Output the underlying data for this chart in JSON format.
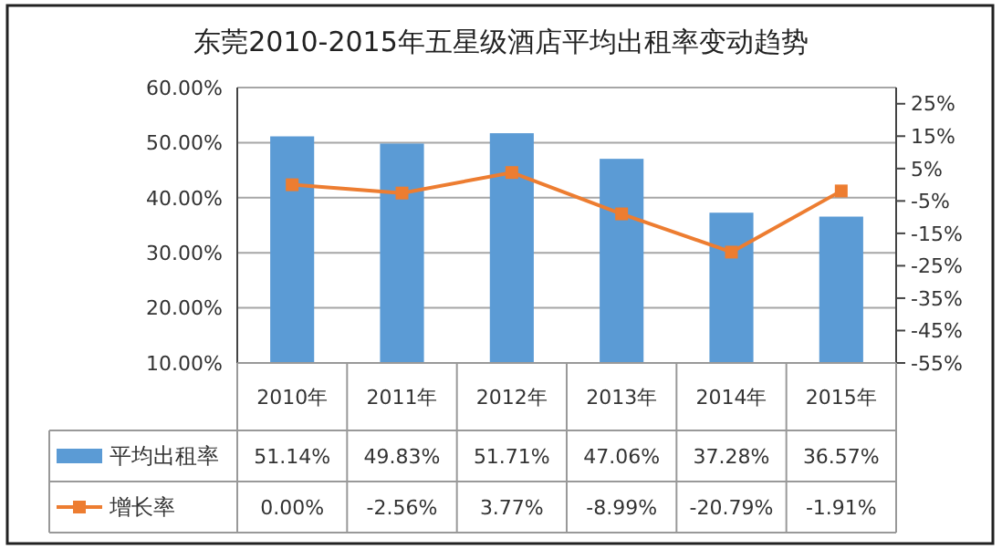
{
  "chart_data": {
    "type": "bar",
    "title": "东莞2010-2015年五星级酒店平均出租率变动趋势",
    "categories": [
      "2010年",
      "2011年",
      "2012年",
      "2013年",
      "2014年",
      "2015年"
    ],
    "series": [
      {
        "name": "平均出租率",
        "color": "#5b9bd5",
        "values": [
          51.14,
          49.83,
          51.71,
          47.06,
          37.28,
          36.57
        ],
        "value_labels": [
          "51.14%",
          "49.83%",
          "51.71%",
          "47.06%",
          "37.28%",
          "36.57%"
        ]
      },
      {
        "name": "增长率",
        "type": "line",
        "axis": "y2",
        "color": "#ed7d31",
        "marker": "square",
        "values": [
          0,
          -2.56,
          3.77,
          -8.99,
          -20.79,
          -1.91
        ],
        "value_labels": [
          "0.00%",
          "-2.56%",
          "3.77%",
          "-8.99%",
          "-20.79%",
          "-1.91%"
        ]
      }
    ],
    "ylim": [
      10,
      60
    ],
    "yticks": [
      {
        "value": 10,
        "label": "10.00%"
      },
      {
        "value": 20,
        "label": "20.00%"
      },
      {
        "value": 30,
        "label": "30.00%"
      },
      {
        "value": 40,
        "label": "40.00%"
      },
      {
        "value": 50,
        "label": "50.00%"
      },
      {
        "value": 60,
        "label": "60.00%"
      }
    ],
    "y2lim": [
      -55,
      30
    ],
    "y2ticks": [
      {
        "value": -55,
        "label": "-55%"
      },
      {
        "value": -45,
        "label": "-45%"
      },
      {
        "value": -35,
        "label": "-35%"
      },
      {
        "value": -25,
        "label": "-25%"
      },
      {
        "value": -15,
        "label": "-15%"
      },
      {
        "value": -5,
        "label": "-5%"
      },
      {
        "value": 5,
        "label": "5%"
      },
      {
        "value": 15,
        "label": "15%"
      },
      {
        "value": 25,
        "label": "25%"
      }
    ],
    "grid": "y",
    "legend": "bottom"
  }
}
